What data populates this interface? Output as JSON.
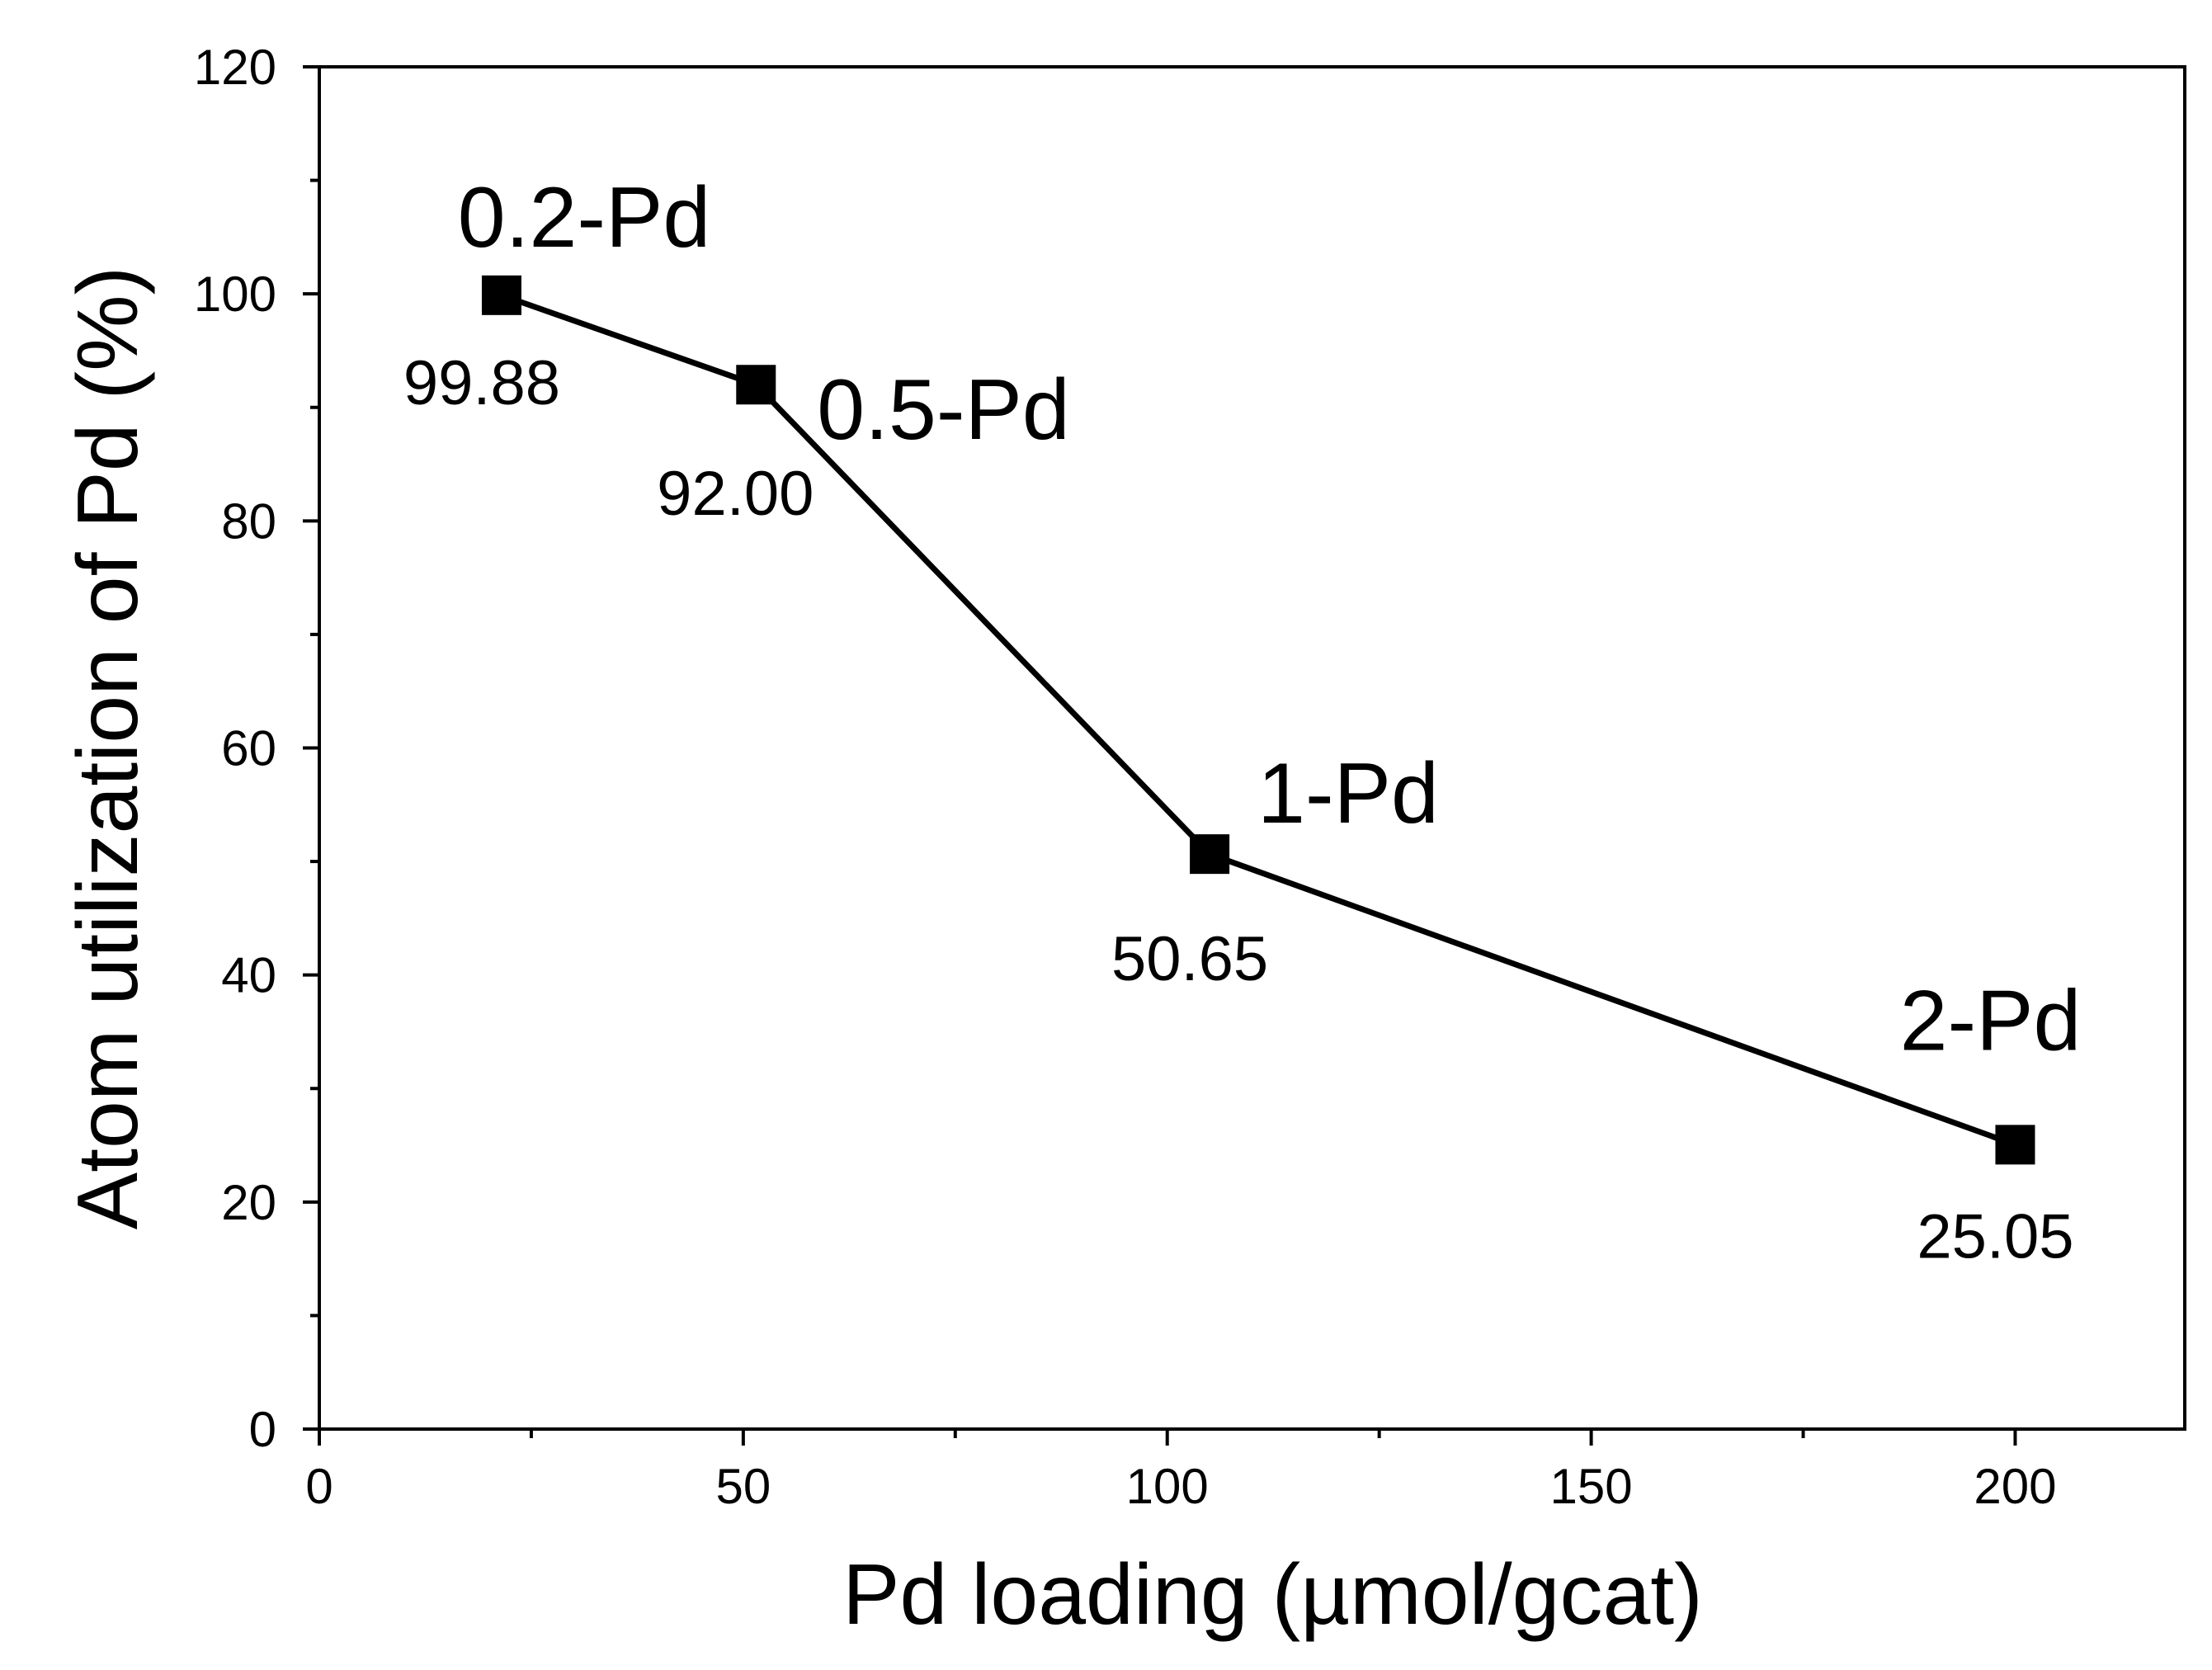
{
  "chart_data": {
    "type": "line",
    "xlabel": "Pd loading (µmol/gcat)",
    "ylabel": "Atom utilization of Pd (%)",
    "xlim": [
      0,
      220
    ],
    "ylim": [
      0,
      120
    ],
    "x_ticks": [
      0,
      50,
      100,
      150,
      200
    ],
    "x_tick_labels": [
      "0",
      "50",
      "100",
      "150",
      "200"
    ],
    "x_minor_ticks": [
      25,
      75,
      125,
      175
    ],
    "y_ticks": [
      0,
      20,
      40,
      60,
      80,
      100,
      120
    ],
    "y_tick_labels": [
      "0",
      "20",
      "40",
      "60",
      "80",
      "100",
      "120"
    ],
    "y_minor_ticks": [
      10,
      30,
      50,
      70,
      90,
      110
    ],
    "grid": false,
    "series": [
      {
        "name": "Atom utilization of Pd",
        "marker": "square",
        "color": "#000000",
        "points": [
          {
            "x": 21.5,
            "y": 99.88,
            "name": "0.2-Pd",
            "value_label": "99.88"
          },
          {
            "x": 51.5,
            "y": 92.0,
            "name": "0.5-Pd",
            "value_label": "92.00"
          },
          {
            "x": 105,
            "y": 50.65,
            "name": "1-Pd",
            "value_label": "50.65"
          },
          {
            "x": 200,
            "y": 25.05,
            "name": "2-Pd",
            "value_label": "25.05"
          }
        ]
      }
    ]
  }
}
